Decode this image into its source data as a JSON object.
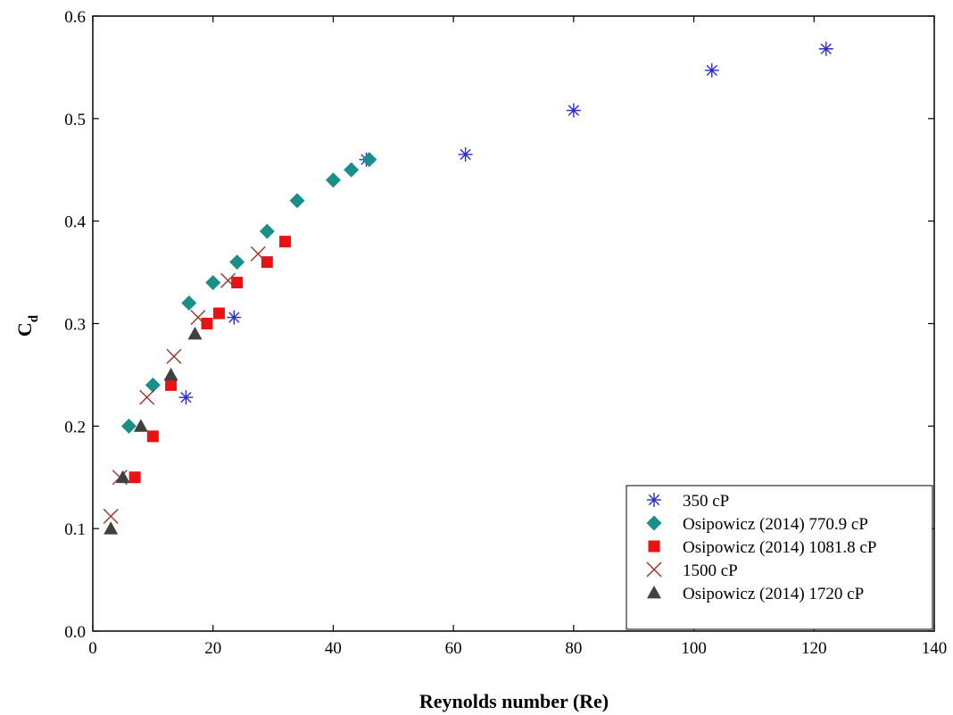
{
  "chart_data": {
    "type": "scatter",
    "xlabel": "Reynolds number (Re)",
    "ylabel_main": "C",
    "ylabel_sub": "d",
    "xlim": [
      0,
      140
    ],
    "ylim": [
      0.0,
      0.6
    ],
    "xticks": [
      0,
      20,
      40,
      60,
      80,
      100,
      120,
      140
    ],
    "xtick_labels": [
      "0",
      "20",
      "40",
      "60",
      "80",
      "100",
      "120",
      "140"
    ],
    "yticks": [
      0.0,
      0.1,
      0.2,
      0.3,
      0.4,
      0.5,
      0.6
    ],
    "ytick_labels": [
      "0.0",
      "0.1",
      "0.2",
      "0.3",
      "0.4",
      "0.5",
      "0.6"
    ],
    "grid": false,
    "legend_position": "bottom-right",
    "series": [
      {
        "name": "350 cP",
        "marker": "asterisk",
        "color": "#2b2bd0",
        "x": [
          15.5,
          23.5,
          45.5,
          62,
          80,
          103,
          122
        ],
        "y": [
          0.228,
          0.306,
          0.46,
          0.465,
          0.508,
          0.547,
          0.568
        ]
      },
      {
        "name": "Osipowicz (2014) 770.9 cP",
        "marker": "diamond",
        "color": "#1a8f8a",
        "x": [
          6,
          10,
          16,
          20,
          24,
          29,
          34,
          40,
          43,
          46
        ],
        "y": [
          0.2,
          0.24,
          0.32,
          0.34,
          0.36,
          0.39,
          0.42,
          0.44,
          0.45,
          0.46
        ]
      },
      {
        "name": "Osipowicz (2014) 1081.8 cP",
        "marker": "square",
        "color": "#ee1111",
        "x": [
          7,
          10,
          13,
          19,
          21,
          24,
          29,
          32
        ],
        "y": [
          0.15,
          0.19,
          0.24,
          0.3,
          0.31,
          0.34,
          0.36,
          0.38
        ]
      },
      {
        "name": "1500 cP",
        "marker": "cross",
        "color": "#a0302a",
        "x": [
          3,
          4.5,
          9,
          13.5,
          17.5,
          22.5,
          27.5
        ],
        "y": [
          0.112,
          0.15,
          0.228,
          0.268,
          0.306,
          0.342,
          0.368
        ]
      },
      {
        "name": "Osipowicz (2014) 1720 cP",
        "marker": "triangle",
        "color": "#404040",
        "x": [
          3,
          5,
          8,
          13,
          17
        ],
        "y": [
          0.1,
          0.15,
          0.2,
          0.25,
          0.29
        ]
      }
    ]
  }
}
